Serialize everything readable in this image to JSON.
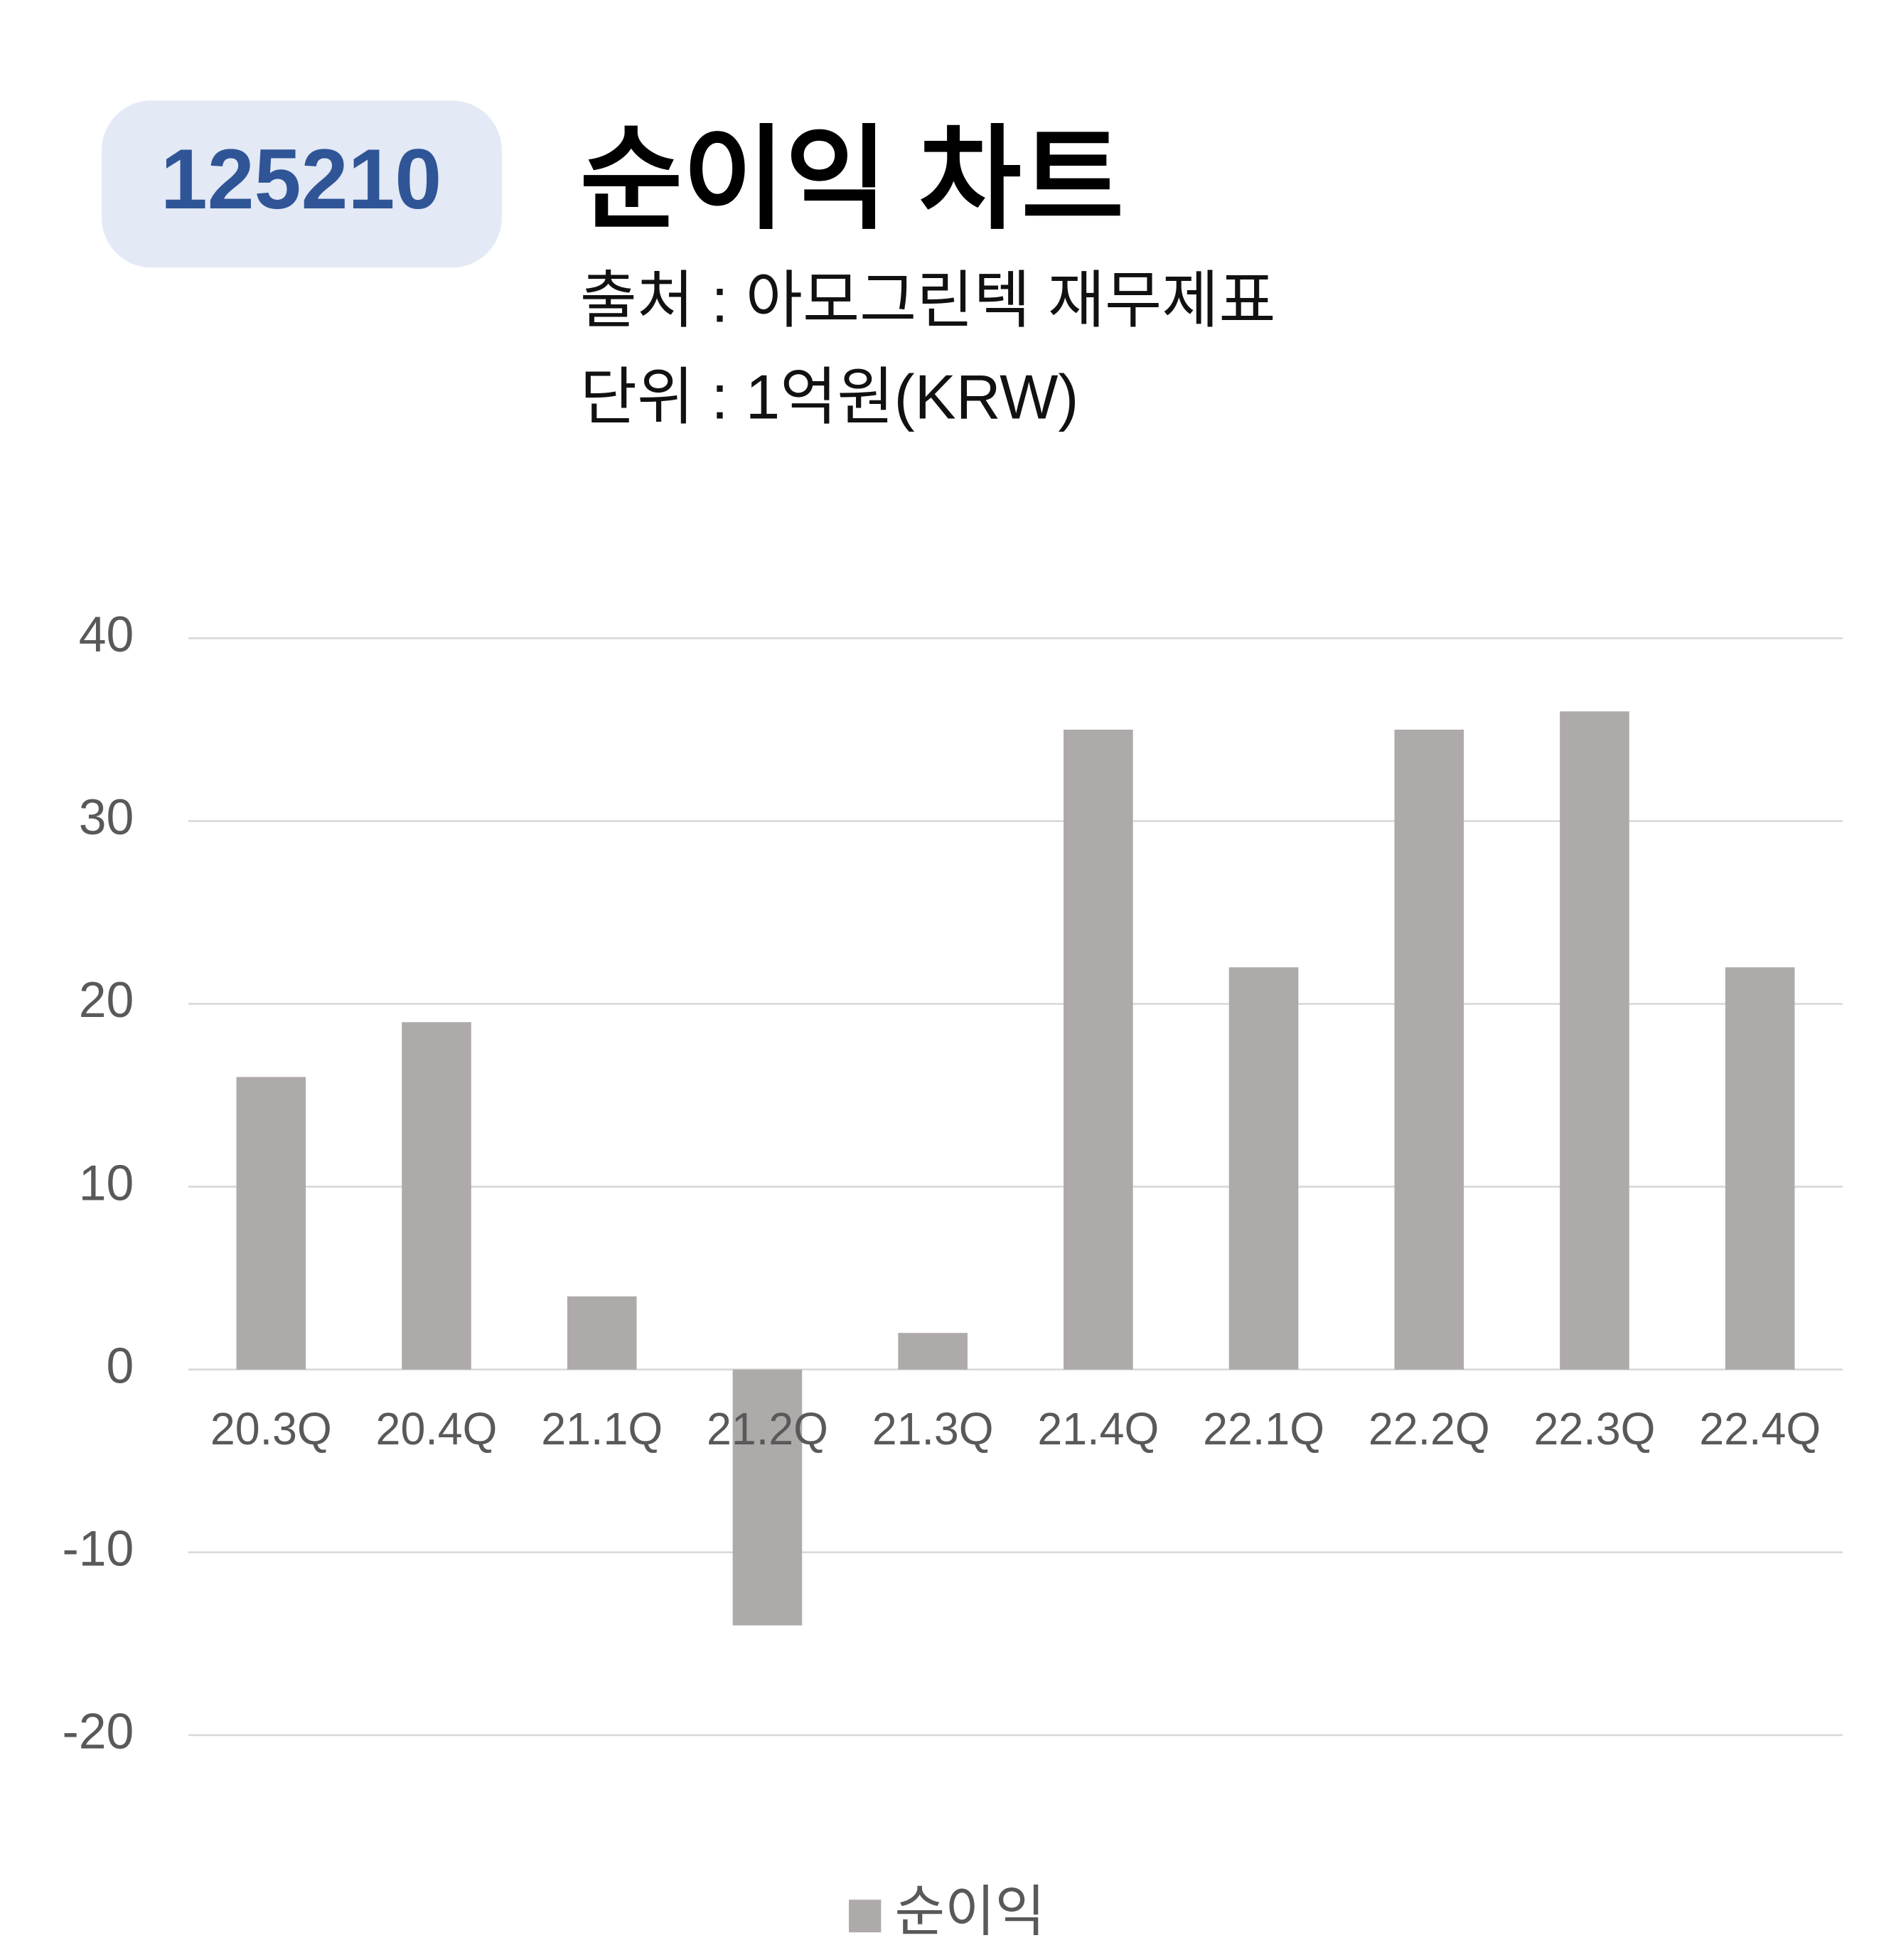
{
  "chart_data": {
    "type": "bar",
    "ticker": "125210",
    "title": "순이익 차트",
    "subtitle": [
      "출처 : 아모그린텍 재무제표",
      "단위 : 1억원(KRW)"
    ],
    "categories": [
      "20.3Q",
      "20.4Q",
      "21.1Q",
      "21.2Q",
      "21.3Q",
      "21.4Q",
      "22.1Q",
      "22.2Q",
      "22.3Q",
      "22.4Q"
    ],
    "series": [
      {
        "name": "순이익",
        "color": "#aeaaaa",
        "values": [
          16,
          19,
          4,
          -14,
          2,
          35,
          22,
          35,
          36,
          22
        ]
      }
    ],
    "ylim": [
      -20,
      40
    ],
    "yticks": [
      -20,
      -10,
      0,
      10,
      20,
      30,
      40
    ],
    "grid": true,
    "legend": "bottom"
  }
}
